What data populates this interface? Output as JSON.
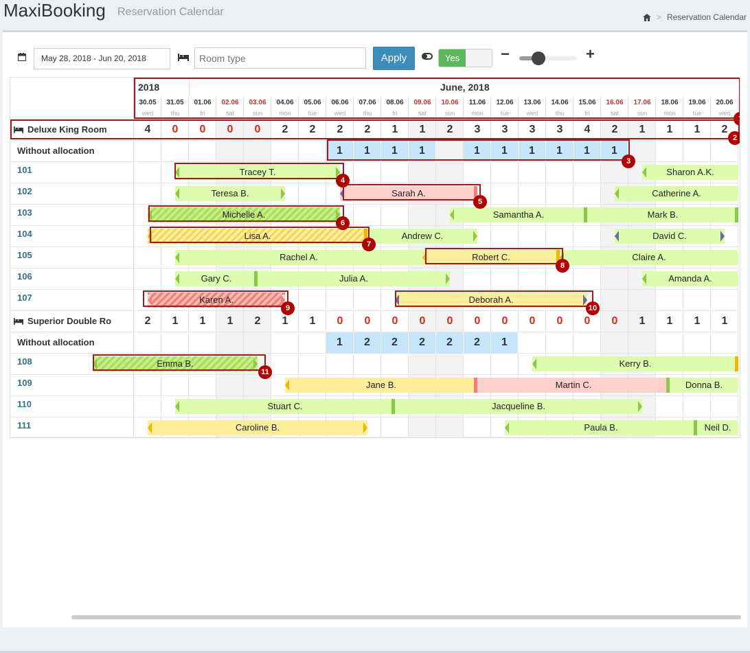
{
  "app": {
    "brand": "MaxiBooking",
    "subtitle": "Reservation Calendar"
  },
  "breadcrumb": {
    "current": "Reservation Calendar"
  },
  "toolbar": {
    "date_range": "May 28, 2018 - Jun 20, 2018",
    "room_type_placeholder": "Room type",
    "apply_label": "Apply",
    "toggle_label": "Yes"
  },
  "calendar": {
    "year": "2018",
    "month": "June, 2018",
    "days": [
      {
        "date": "30.05",
        "wd": "wed",
        "weekend": false
      },
      {
        "date": "31.05",
        "wd": "thu",
        "weekend": false
      },
      {
        "date": "01.06",
        "wd": "fri",
        "weekend": false
      },
      {
        "date": "02.06",
        "wd": "sat",
        "weekend": true
      },
      {
        "date": "03.06",
        "wd": "sun",
        "weekend": true
      },
      {
        "date": "04.06",
        "wd": "mon",
        "weekend": false
      },
      {
        "date": "05.06",
        "wd": "tue",
        "weekend": false
      },
      {
        "date": "06.06",
        "wd": "wed",
        "weekend": false
      },
      {
        "date": "07.06",
        "wd": "thu",
        "weekend": false
      },
      {
        "date": "08.06",
        "wd": "fri",
        "weekend": false
      },
      {
        "date": "09.06",
        "wd": "sat",
        "weekend": true
      },
      {
        "date": "10.06",
        "wd": "sun",
        "weekend": true
      },
      {
        "date": "11.06",
        "wd": "mon",
        "weekend": false
      },
      {
        "date": "12.06",
        "wd": "tue",
        "weekend": false
      },
      {
        "date": "13.06",
        "wd": "wed",
        "weekend": false
      },
      {
        "date": "14.06",
        "wd": "thu",
        "weekend": false
      },
      {
        "date": "15.06",
        "wd": "fri",
        "weekend": false
      },
      {
        "date": "16.06",
        "wd": "sat",
        "weekend": true
      },
      {
        "date": "17.06",
        "wd": "sun",
        "weekend": true
      },
      {
        "date": "18.06",
        "wd": "mon",
        "weekend": false
      },
      {
        "date": "19.06",
        "wd": "tue",
        "weekend": false
      },
      {
        "date": "20.06",
        "wd": "wed",
        "weekend": false
      }
    ],
    "room_types": [
      {
        "name": "Deluxe King Room",
        "availability": [
          "4",
          "0",
          "0",
          "0",
          "0",
          "2",
          "2",
          "2",
          "2",
          "1",
          "1",
          "2",
          "3",
          "3",
          "3",
          "3",
          "4",
          "2",
          "1",
          "1",
          "1",
          "2"
        ],
        "without_allocation_label": "Without allocation",
        "without_allocation": [
          null,
          null,
          null,
          null,
          null,
          null,
          null,
          "1",
          "1",
          "1",
          "1",
          null,
          "1",
          "1",
          "1",
          "1",
          "1",
          "1",
          null,
          null,
          null,
          null
        ],
        "rooms": [
          {
            "number": "101",
            "bookings": [
              {
                "guest": "Tracey T.",
                "start": 1.5,
                "end": 7.5,
                "style": "g",
                "lt": "g",
                "rt": "g"
              },
              {
                "guest": "Sharon A.K.",
                "start": 18.5,
                "end": 22,
                "style": "g",
                "lt": "g"
              }
            ]
          },
          {
            "number": "102",
            "bookings": [
              {
                "guest": "Teresa B.",
                "start": 1.5,
                "end": 5.5,
                "style": "g",
                "lt": "g",
                "rt": "g"
              },
              {
                "guest": "Sarah A.",
                "start": 7.5,
                "end": 12.5,
                "style": "p",
                "lt": "purple",
                "rt": "sep-r"
              },
              {
                "guest": "Catherine A.",
                "start": 17.5,
                "end": 22,
                "style": "g",
                "lt": "g"
              }
            ]
          },
          {
            "number": "103",
            "bookings": [
              {
                "guest": "Michelle A.",
                "start": 0.5,
                "end": 7.5,
                "style": "hg",
                "lt": "g",
                "rt": "g"
              },
              {
                "guest": "Samantha A.",
                "start": 11.5,
                "end": 16.5,
                "style": "g",
                "lt": "g",
                "rt": "sep-g"
              },
              {
                "guest": "Mark B.",
                "start": 16.5,
                "end": 22,
                "style": "g",
                "rt": "sep-g"
              }
            ]
          },
          {
            "number": "104",
            "bookings": [
              {
                "guest": "Lisa A.",
                "start": 0.5,
                "end": 8.5,
                "style": "hy",
                "lt": "orange",
                "rt": "sep-o"
              },
              {
                "guest": "Andrew C.",
                "start": 8.5,
                "end": 12.5,
                "style": "g",
                "rt": "g"
              },
              {
                "guest": "David C.",
                "start": 17.5,
                "end": 21.5,
                "style": "g",
                "lt": "purple",
                "rt": "purple"
              }
            ]
          },
          {
            "number": "105",
            "bookings": [
              {
                "guest": "Rachel A.",
                "start": 1.5,
                "end": 10.5,
                "style": "g",
                "lt": "g"
              },
              {
                "guest": "Robert C.",
                "start": 10.5,
                "end": 15.5,
                "style": "y",
                "lt": "orange",
                "rt": "sep-o"
              },
              {
                "guest": "Claire A.",
                "start": 15.5,
                "end": 22,
                "style": "g",
                "lt": "g"
              }
            ]
          },
          {
            "number": "106",
            "bookings": [
              {
                "guest": "Gary C.",
                "start": 1.5,
                "end": 4.5,
                "style": "g",
                "lt": "g",
                "rt": "sep-g"
              },
              {
                "guest": "Julia A.",
                "start": 4.5,
                "end": 11.5,
                "style": "g",
                "rt": "g"
              },
              {
                "guest": "Amanda A.",
                "start": 18.5,
                "end": 22,
                "style": "g",
                "lt": "g"
              }
            ]
          },
          {
            "number": "107",
            "bookings": [
              {
                "guest": "Karen A.",
                "start": 0.5,
                "end": 5.5,
                "style": "hr",
                "lt": "p",
                "rt": "p"
              },
              {
                "guest": "Deborah A.",
                "start": 9.5,
                "end": 16.5,
                "style": "y",
                "lt": "purple",
                "rt": "purple"
              }
            ]
          }
        ]
      },
      {
        "name": "Superior Double Ro",
        "availability": [
          "2",
          "1",
          "1",
          "1",
          "2",
          "1",
          "1",
          "0",
          "0",
          "0",
          "0",
          "0",
          "0",
          "0",
          "0",
          "0",
          "0",
          "0",
          "1",
          "1",
          "1",
          "1"
        ],
        "without_allocation_label": "Without allocation",
        "without_allocation": [
          null,
          null,
          null,
          null,
          null,
          null,
          null,
          "1",
          "2",
          "2",
          "2",
          "2",
          "2",
          "1",
          null,
          null,
          null,
          null,
          null,
          null,
          null,
          null
        ],
        "rooms": [
          {
            "number": "108",
            "bookings": [
              {
                "guest": "Emma B.",
                "start": -1.5,
                "end": 4.5,
                "style": "hg",
                "lt": "g",
                "rt": "g"
              },
              {
                "guest": "Kerry B.",
                "start": 14.5,
                "end": 22,
                "style": "g",
                "lt": "g",
                "rt": "sep-o"
              }
            ]
          },
          {
            "number": "109",
            "bookings": [
              {
                "guest": "Jane B.",
                "start": 5.5,
                "end": 12.5,
                "style": "y",
                "lt": "orange",
                "rt": "sep-r"
              },
              {
                "guest": "Martin C.",
                "start": 12.5,
                "end": 19.5,
                "style": "p",
                "rt": "sep-g"
              },
              {
                "guest": "Donna B.",
                "start": 19.5,
                "end": 22,
                "style": "g"
              }
            ]
          },
          {
            "number": "110",
            "bookings": [
              {
                "guest": "Stuart C.",
                "start": 1.5,
                "end": 9.5,
                "style": "g",
                "lt": "g",
                "rt": "sep-g"
              },
              {
                "guest": "Jacqueline B.",
                "start": 9.5,
                "end": 18.5,
                "style": "g",
                "rt": "g"
              }
            ]
          },
          {
            "number": "111",
            "bookings": [
              {
                "guest": "Caroline B.",
                "start": 0.5,
                "end": 8.5,
                "style": "y",
                "lt": "orange",
                "rt": "orange"
              },
              {
                "guest": "Paula B.",
                "start": 13.5,
                "end": 20.5,
                "style": "g",
                "lt": "g",
                "rt": "sep-g"
              },
              {
                "guest": "Neil D.",
                "start": 20.5,
                "end": 22,
                "style": "g"
              }
            ]
          }
        ]
      }
    ]
  },
  "annotations": [
    "1",
    "2",
    "3",
    "4",
    "5",
    "6",
    "7",
    "8",
    "9",
    "10",
    "11"
  ]
}
